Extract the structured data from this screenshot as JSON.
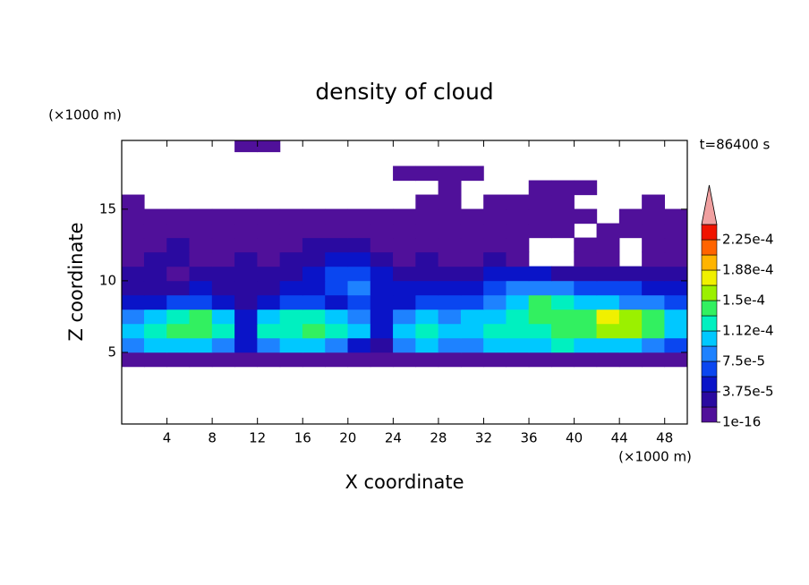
{
  "chart_data": {
    "type": "contour",
    "title": "density of cloud",
    "x_label": "X coordinate",
    "y_label": "Z coordinate",
    "x_unit": "(×1000 m)",
    "y_unit": "(×1000 m)",
    "time_label": "t=86400 s",
    "xlim": [
      0,
      50
    ],
    "ylim": [
      0,
      19.8
    ],
    "xticks": [
      4,
      8,
      12,
      16,
      20,
      24,
      28,
      32,
      36,
      40,
      44,
      48
    ],
    "yticks": [
      5,
      10,
      15
    ],
    "x": [
      1,
      3,
      5,
      7,
      9,
      11,
      13,
      15,
      17,
      19,
      21,
      23,
      25,
      27,
      29,
      31,
      33,
      35,
      37,
      39,
      41,
      43,
      45,
      47,
      49
    ],
    "y": [
      0.5,
      1.5,
      2.5,
      3.5,
      4.5,
      5.5,
      6.5,
      7.5,
      8.5,
      9.5,
      10.5,
      11.5,
      12.5,
      13.5,
      14.5,
      15.5,
      16.5,
      17.5,
      18.5,
      19.5
    ],
    "z": [
      [
        null,
        null,
        null,
        null,
        null,
        null,
        null,
        null,
        null,
        null,
        null,
        null,
        null,
        null,
        null,
        null,
        null,
        null,
        null,
        null,
        null,
        null,
        null,
        null,
        null
      ],
      [
        null,
        null,
        null,
        null,
        null,
        null,
        null,
        null,
        null,
        null,
        null,
        null,
        null,
        null,
        null,
        null,
        null,
        null,
        null,
        null,
        null,
        null,
        null,
        null,
        null
      ],
      [
        null,
        null,
        null,
        null,
        null,
        null,
        null,
        null,
        null,
        null,
        null,
        null,
        null,
        null,
        null,
        null,
        null,
        null,
        null,
        null,
        null,
        null,
        null,
        null,
        null
      ],
      [
        null,
        null,
        null,
        null,
        null,
        null,
        null,
        null,
        null,
        null,
        null,
        null,
        null,
        null,
        null,
        null,
        null,
        null,
        null,
        null,
        null,
        null,
        null,
        null,
        null
      ],
      [
        1e-05,
        1e-05,
        1e-05,
        1e-05,
        1e-05,
        1e-05,
        1e-05,
        1e-05,
        1e-05,
        1e-05,
        1e-05,
        1e-05,
        1e-05,
        1e-05,
        1e-05,
        1e-05,
        1e-05,
        1e-05,
        1e-05,
        1e-05,
        1e-05,
        1e-05,
        1e-05,
        1e-05,
        1e-05
      ],
      [
        8.5e-05,
        0.0001,
        0.0001,
        0.0001,
        8.5e-05,
        4.5e-05,
        8.5e-05,
        0.0001,
        0.0001,
        8.5e-05,
        4.5e-05,
        2.5e-05,
        8.5e-05,
        0.0001,
        8.5e-05,
        8.5e-05,
        0.0001,
        0.0001,
        0.0001,
        0.00012,
        0.0001,
        0.0001,
        0.0001,
        8.5e-05,
        6.5e-05
      ],
      [
        0.0001,
        0.00012,
        0.00014,
        0.00014,
        0.00012,
        4.5e-05,
        0.00012,
        0.00012,
        0.00014,
        0.00012,
        0.0001,
        4.5e-05,
        0.0001,
        0.00012,
        0.0001,
        0.0001,
        0.00012,
        0.00012,
        0.00012,
        0.00014,
        0.00014,
        0.00016,
        0.00016,
        0.00014,
        0.0001
      ],
      [
        8.5e-05,
        0.0001,
        0.00012,
        0.00014,
        0.0001,
        4.5e-05,
        0.0001,
        0.00012,
        0.00012,
        0.0001,
        8.5e-05,
        4.5e-05,
        8.5e-05,
        0.0001,
        8.5e-05,
        0.0001,
        0.0001,
        0.00012,
        0.00014,
        0.00014,
        0.00014,
        0.00018,
        0.00016,
        0.00014,
        0.0001
      ],
      [
        4.5e-05,
        4.5e-05,
        6.5e-05,
        6.5e-05,
        4.5e-05,
        2.5e-05,
        4.5e-05,
        6.5e-05,
        6.5e-05,
        4.5e-05,
        6.5e-05,
        4.5e-05,
        4.5e-05,
        6.5e-05,
        6.5e-05,
        6.5e-05,
        8.5e-05,
        0.0001,
        0.00014,
        0.00012,
        0.0001,
        0.0001,
        8.5e-05,
        8.5e-05,
        6.5e-05
      ],
      [
        2.5e-05,
        2.5e-05,
        2.5e-05,
        4.5e-05,
        2.5e-05,
        2.5e-05,
        2.5e-05,
        4.5e-05,
        4.5e-05,
        6.5e-05,
        8.5e-05,
        4.5e-05,
        4.5e-05,
        4.5e-05,
        4.5e-05,
        4.5e-05,
        6.5e-05,
        8.5e-05,
        8.5e-05,
        8.5e-05,
        6.5e-05,
        6.5e-05,
        6.5e-05,
        4.5e-05,
        4.5e-05
      ],
      [
        2.5e-05,
        2.5e-05,
        1e-05,
        2.5e-05,
        2.5e-05,
        2.5e-05,
        2.5e-05,
        2.5e-05,
        4.5e-05,
        6.5e-05,
        6.5e-05,
        4.5e-05,
        2.5e-05,
        2.5e-05,
        2.5e-05,
        2.5e-05,
        4.5e-05,
        4.5e-05,
        4.5e-05,
        2.5e-05,
        2.5e-05,
        2.5e-05,
        2.5e-05,
        2.5e-05,
        2.5e-05
      ],
      [
        1e-05,
        2.5e-05,
        2.5e-05,
        1e-05,
        1e-05,
        2.5e-05,
        1e-05,
        2.5e-05,
        2.5e-05,
        4.5e-05,
        4.5e-05,
        2.5e-05,
        1e-05,
        2.5e-05,
        1e-05,
        1e-05,
        2.5e-05,
        1e-05,
        null,
        null,
        1e-05,
        1e-05,
        null,
        1e-05,
        1e-05
      ],
      [
        1e-05,
        1e-05,
        2.5e-05,
        1e-05,
        1e-05,
        1e-05,
        1e-05,
        1e-05,
        2.5e-05,
        2.5e-05,
        2.5e-05,
        1e-05,
        1e-05,
        1e-05,
        1e-05,
        1e-05,
        1e-05,
        1e-05,
        null,
        null,
        1e-05,
        1e-05,
        null,
        1e-05,
        1e-05
      ],
      [
        1e-05,
        1e-05,
        1e-05,
        1e-05,
        1e-05,
        1e-05,
        1e-05,
        1e-05,
        1e-05,
        1e-05,
        1e-05,
        1e-05,
        1e-05,
        1e-05,
        1e-05,
        1e-05,
        1e-05,
        1e-05,
        1e-05,
        1e-05,
        null,
        1e-05,
        1e-05,
        1e-05,
        1e-05
      ],
      [
        1e-05,
        1e-05,
        1e-05,
        1e-05,
        1e-05,
        1e-05,
        1e-05,
        1e-05,
        1e-05,
        1e-05,
        1e-05,
        1e-05,
        1e-05,
        1e-05,
        1e-05,
        1e-05,
        1e-05,
        1e-05,
        1e-05,
        1e-05,
        1e-05,
        null,
        1e-05,
        1e-05,
        1e-05
      ],
      [
        1e-05,
        null,
        null,
        null,
        null,
        null,
        null,
        null,
        null,
        null,
        null,
        null,
        null,
        1e-05,
        1e-05,
        null,
        1e-05,
        1e-05,
        1e-05,
        1e-05,
        null,
        null,
        null,
        1e-05,
        null
      ],
      [
        null,
        null,
        null,
        null,
        null,
        null,
        null,
        null,
        null,
        null,
        null,
        null,
        null,
        null,
        1e-05,
        null,
        null,
        null,
        1e-05,
        1e-05,
        1e-05,
        null,
        null,
        null,
        null
      ],
      [
        null,
        null,
        null,
        null,
        null,
        null,
        null,
        null,
        null,
        null,
        null,
        null,
        1e-05,
        1e-05,
        1e-05,
        1e-05,
        null,
        null,
        null,
        null,
        null,
        null,
        null,
        null,
        null
      ],
      [
        null,
        null,
        null,
        null,
        null,
        null,
        null,
        null,
        null,
        null,
        null,
        null,
        null,
        null,
        null,
        null,
        null,
        null,
        null,
        null,
        null,
        null,
        null,
        null,
        null
      ],
      [
        null,
        null,
        null,
        null,
        null,
        1e-05,
        1e-05,
        null,
        null,
        null,
        null,
        null,
        null,
        null,
        null,
        null,
        null,
        null,
        null,
        null,
        null,
        null,
        null,
        null,
        null
      ]
    ],
    "levels": [
      1e-16,
      1.875e-05,
      3.75e-05,
      5.625e-05,
      7.5e-05,
      9.375e-05,
      0.0001125,
      0.00013125,
      0.00015,
      0.00016875,
      0.0001875,
      0.00020625,
      0.000225
    ],
    "colors": [
      "#50109a",
      "#2a0aa0",
      "#0a14c8",
      "#0a46f0",
      "#1e82ff",
      "#00c8ff",
      "#00f0c0",
      "#32f060",
      "#9bf000",
      "#f0f000",
      "#ffb400",
      "#ff6400",
      "#f01400"
    ],
    "over_color": "#f0a0a0",
    "colorbar_ticks": [
      {
        "value": 1e-16,
        "label": "1e-16"
      },
      {
        "value": 3.75e-05,
        "label": "3.75e-5"
      },
      {
        "value": 7.5e-05,
        "label": "7.5e-5"
      },
      {
        "value": 0.0001125,
        "label": "1.12e-4"
      },
      {
        "value": 0.00015,
        "label": "1.5e-4"
      },
      {
        "value": 0.0001875,
        "label": "1.88e-4"
      },
      {
        "value": 0.000225,
        "label": "2.25e-4"
      }
    ]
  }
}
